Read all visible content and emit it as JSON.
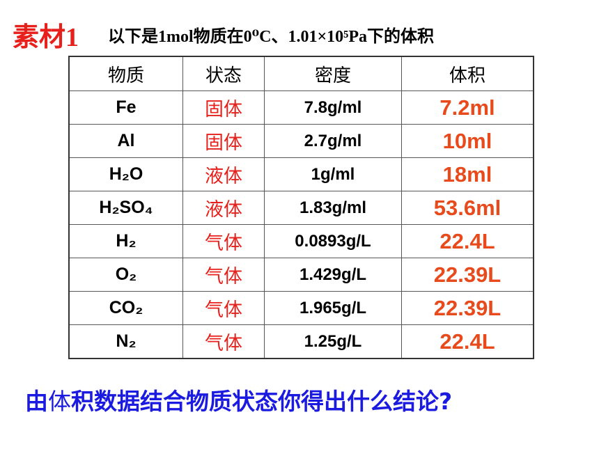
{
  "header": {
    "label": "素材1",
    "title": "以下是1mol物质在0⁰C、1.01×10⁵Pa下的体积"
  },
  "table": {
    "columns": [
      "物质",
      "状态",
      "密度",
      "体积"
    ],
    "rows": [
      [
        "Fe",
        "固体",
        "7.8g/ml",
        "7.2ml"
      ],
      [
        "Al",
        "固体",
        "2.7g/ml",
        "10ml"
      ],
      [
        "H₂O",
        "液体",
        "1g/ml",
        "18ml"
      ],
      [
        "H₂SO₄",
        "液体",
        "1.83g/ml",
        "53.6ml"
      ],
      [
        "H₂",
        "气体",
        "0.0893g/L",
        "22.4L"
      ],
      [
        "O₂",
        "气体",
        "1.429g/L",
        "22.39L"
      ],
      [
        "CO₂",
        "气体",
        "1.965g/L",
        "22.39L"
      ],
      [
        "N₂",
        "气体",
        "1.25g/L",
        "22.4L"
      ]
    ]
  },
  "question": [
    "由",
    "体",
    "积数据结合物质状态你得出什么结论?"
  ]
}
